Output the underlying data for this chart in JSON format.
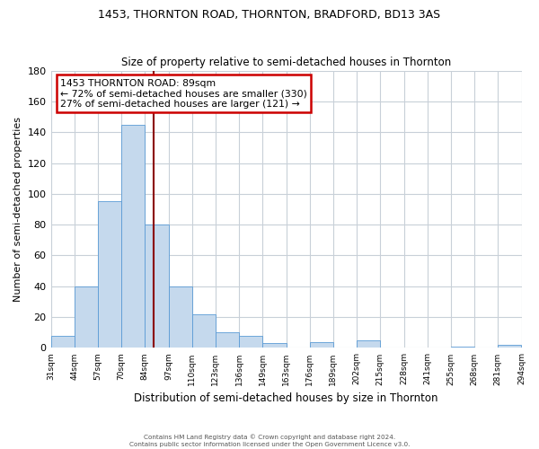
{
  "title": "1453, THORNTON ROAD, THORNTON, BRADFORD, BD13 3AS",
  "subtitle": "Size of property relative to semi-detached houses in Thornton",
  "xlabel": "Distribution of semi-detached houses by size in Thornton",
  "ylabel": "Number of semi-detached properties",
  "bin_edges": [
    31,
    44,
    57,
    70,
    84,
    97,
    110,
    123,
    136,
    149,
    163,
    176,
    189,
    202,
    215,
    228,
    241,
    255,
    268,
    281,
    294
  ],
  "bin_labels": [
    "31sqm",
    "44sqm",
    "57sqm",
    "70sqm",
    "84sqm",
    "97sqm",
    "110sqm",
    "123sqm",
    "136sqm",
    "149sqm",
    "163sqm",
    "176sqm",
    "189sqm",
    "202sqm",
    "215sqm",
    "228sqm",
    "241sqm",
    "255sqm",
    "268sqm",
    "281sqm",
    "294sqm"
  ],
  "values": [
    8,
    40,
    95,
    145,
    80,
    40,
    22,
    10,
    8,
    3,
    0,
    4,
    0,
    5,
    0,
    0,
    0,
    1,
    0,
    2
  ],
  "bar_color": "#c5d9ed",
  "bar_edgecolor": "#5b9bd5",
  "grid_color": "#c8d0d8",
  "background_color": "#ffffff",
  "subject_sqm": 89,
  "subject_line_color": "#8b0000",
  "annotation_text_line1": "1453 THORNTON ROAD: 89sqm",
  "annotation_text_line2": "← 72% of semi-detached houses are smaller (330)",
  "annotation_text_line3": "27% of semi-detached houses are larger (121) →",
  "annotation_box_edgecolor": "#cc0000",
  "ylim": [
    0,
    180
  ],
  "yticks": [
    0,
    20,
    40,
    60,
    80,
    100,
    120,
    140,
    160,
    180
  ],
  "footer_line1": "Contains HM Land Registry data © Crown copyright and database right 2024.",
  "footer_line2": "Contains public sector information licensed under the Open Government Licence v3.0."
}
